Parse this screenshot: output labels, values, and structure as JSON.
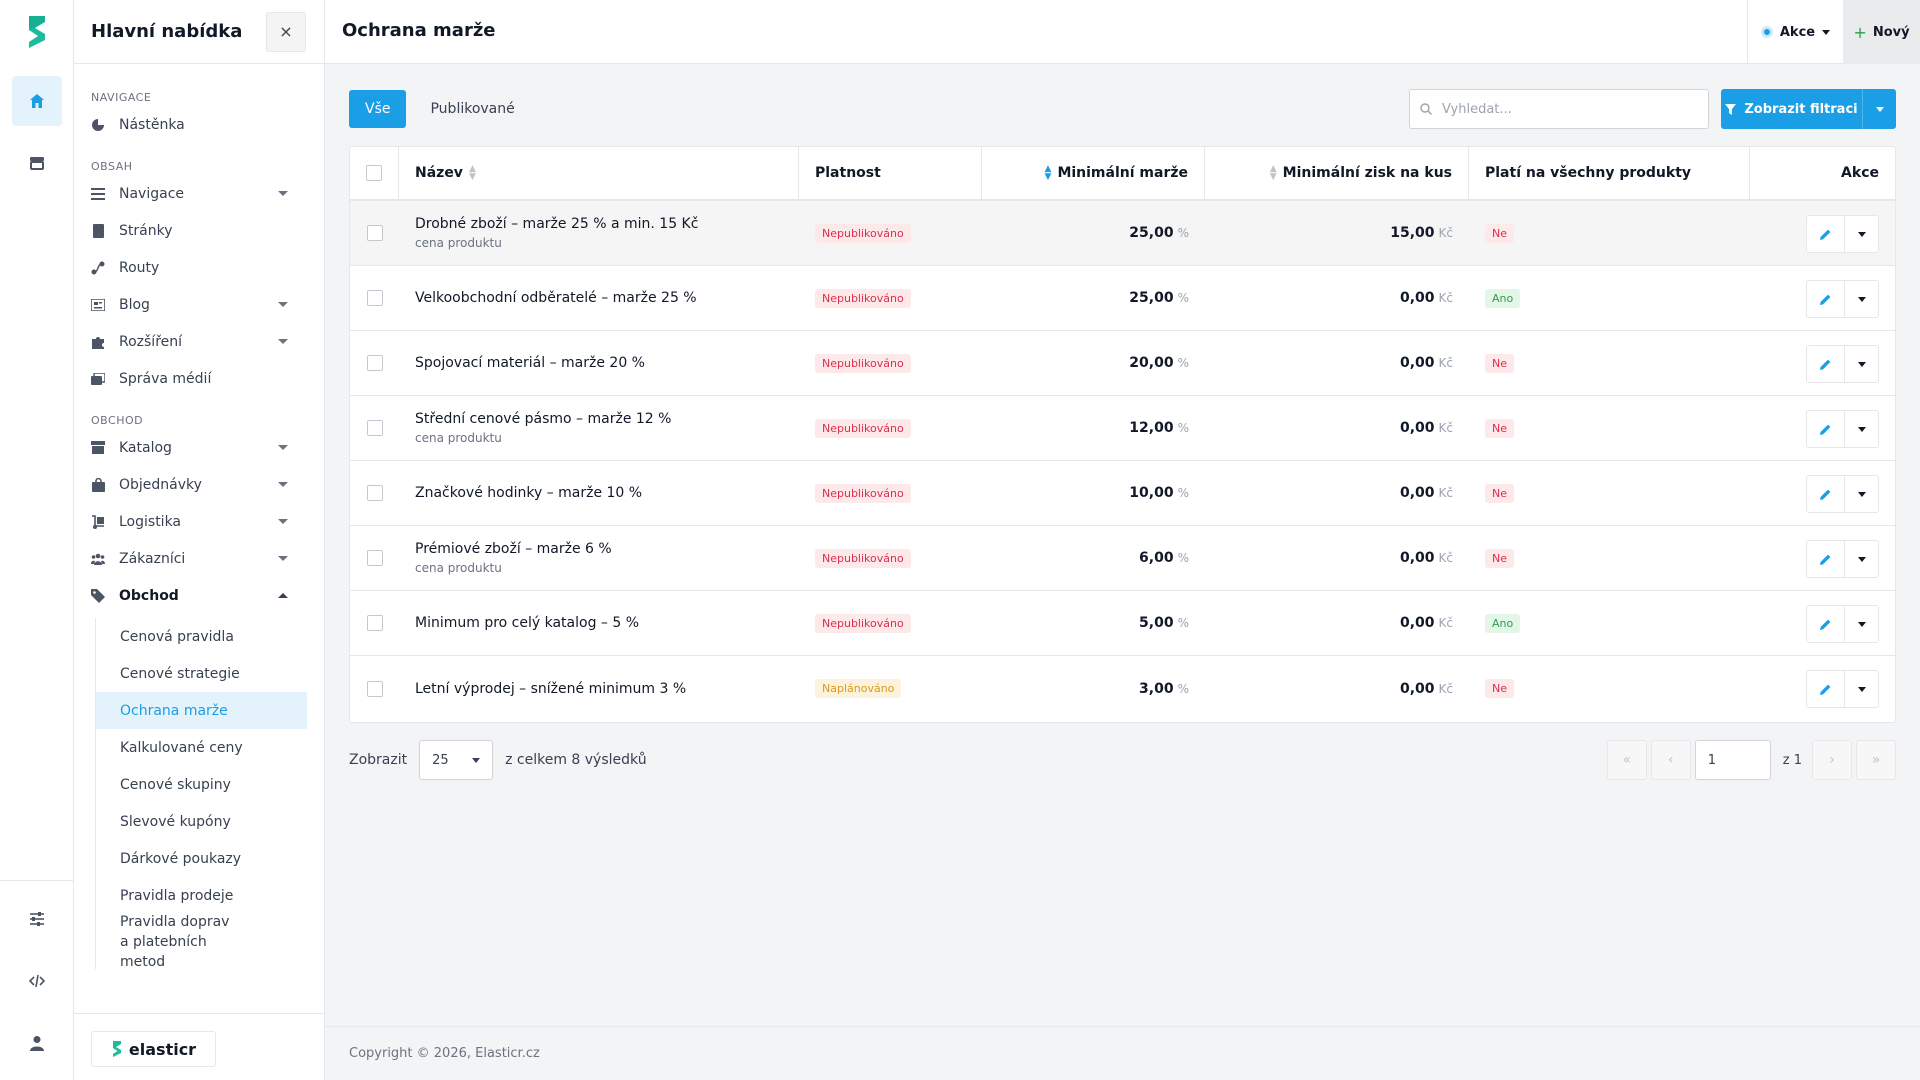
{
  "colors": {
    "accent": "#1a9ee6",
    "danger": "#dc2f4a",
    "warning": "#d99a1a",
    "success": "#2e9c4b"
  },
  "sidebar": {
    "title": "Hlavní nabídka",
    "close_icon": "×",
    "sections": {
      "navigace": "NAVIGACE",
      "obsah": "OBSAH",
      "obchod": "OBCHOD"
    },
    "items": {
      "nastenka": "Nástěnka",
      "navigace": "Navigace",
      "stranky": "Stránky",
      "routy": "Routy",
      "blog": "Blog",
      "rozsireni": "Rozšíření",
      "sprava": "Správa médií",
      "katalog": "Katalog",
      "objednavky": "Objednávky",
      "logistika": "Logistika",
      "zakaznici": "Zákazníci",
      "obchod": "Obchod"
    },
    "submenu": [
      "Cenová pravidla",
      "Cenové strategie",
      "Ochrana marže",
      "Kalkulované ceny",
      "Cenové skupiny",
      "Slevové kupóny",
      "Dárkové poukazy",
      "Pravidla prodeje",
      "Pravidla doprav a platebních metod"
    ],
    "brand": "elasticr"
  },
  "header": {
    "title": "Ochrana marže",
    "akce": "Akce",
    "novy": "Nový",
    "plus": "+"
  },
  "tabs": [
    "Vše",
    "Publikované"
  ],
  "search": {
    "placeholder": "Vyhledat..."
  },
  "filter_button": "Zobrazit filtraci",
  "table": {
    "columns": [
      "Název",
      "Platnost",
      "Minimální marže",
      "Minimální zisk na kus",
      "Platí na všechny produkty",
      "Akce"
    ],
    "rows": [
      {
        "name": "Drobné zboží – marže 25 % a min. 15 Kč",
        "sub": "cena produktu",
        "status": "Nepublikováno",
        "margin": "25,00",
        "margin_unit": "%",
        "profit": "15,00",
        "profit_unit": "Kč",
        "all": "Ne"
      },
      {
        "name": "Velkoobchodní odběratelé – marže 25 %",
        "sub": "",
        "status": "Nepublikováno",
        "margin": "25,00",
        "margin_unit": "%",
        "profit": "0,00",
        "profit_unit": "Kč",
        "all": "Ano"
      },
      {
        "name": "Spojovací materiál – marže 20 %",
        "sub": "",
        "status": "Nepublikováno",
        "margin": "20,00",
        "margin_unit": "%",
        "profit": "0,00",
        "profit_unit": "Kč",
        "all": "Ne"
      },
      {
        "name": "Střední cenové pásmo – marže 12 %",
        "sub": "cena produktu",
        "status": "Nepublikováno",
        "margin": "12,00",
        "margin_unit": "%",
        "profit": "0,00",
        "profit_unit": "Kč",
        "all": "Ne"
      },
      {
        "name": "Značkové hodinky – marže 10 %",
        "sub": "",
        "status": "Nepublikováno",
        "margin": "10,00",
        "margin_unit": "%",
        "profit": "0,00",
        "profit_unit": "Kč",
        "all": "Ne"
      },
      {
        "name": "Prémiové zboží – marže 6 %",
        "sub": "cena produktu",
        "status": "Nepublikováno",
        "margin": "6,00",
        "margin_unit": "%",
        "profit": "0,00",
        "profit_unit": "Kč",
        "all": "Ne"
      },
      {
        "name": "Minimum pro celý katalog – 5 %",
        "sub": "",
        "status": "Nepublikováno",
        "margin": "5,00",
        "margin_unit": "%",
        "profit": "0,00",
        "profit_unit": "Kč",
        "all": "Ano"
      },
      {
        "name": "Letní výprodej – snížené minimum 3 %",
        "sub": "",
        "status": "Naplánováno",
        "margin": "3,00",
        "margin_unit": "%",
        "profit": "0,00",
        "profit_unit": "Kč",
        "all": "Ne"
      }
    ]
  },
  "pagination": {
    "show_label": "Zobrazit",
    "per_page": "25",
    "total_text": "z celkem 8 výsledků",
    "page": "1",
    "of": "z 1",
    "first": "«",
    "prev": "‹",
    "next": "›",
    "last": "»"
  },
  "footer": {
    "copyright": "Copyright © 2026, Elasticr.cz"
  }
}
